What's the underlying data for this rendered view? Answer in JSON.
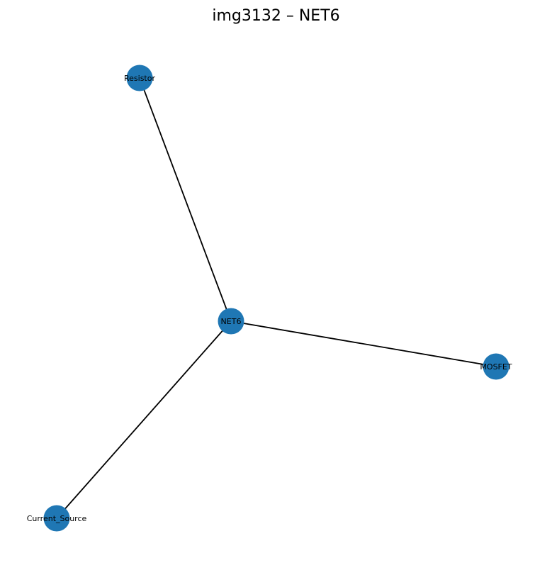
{
  "title": "img3132 – NET6",
  "colors": {
    "node_fill": "#1f77b4",
    "edge_stroke": "#000000",
    "background": "#ffffff"
  },
  "nodes": [
    {
      "id": "net6",
      "label": "NET6"
    },
    {
      "id": "resistor",
      "label": "Resistor"
    },
    {
      "id": "mosfet",
      "label": "MOSFET"
    },
    {
      "id": "current_source",
      "label": "Current_Source"
    }
  ],
  "edges": [
    {
      "source": "net6",
      "target": "resistor"
    },
    {
      "source": "net6",
      "target": "mosfet"
    },
    {
      "source": "net6",
      "target": "current_source"
    }
  ]
}
